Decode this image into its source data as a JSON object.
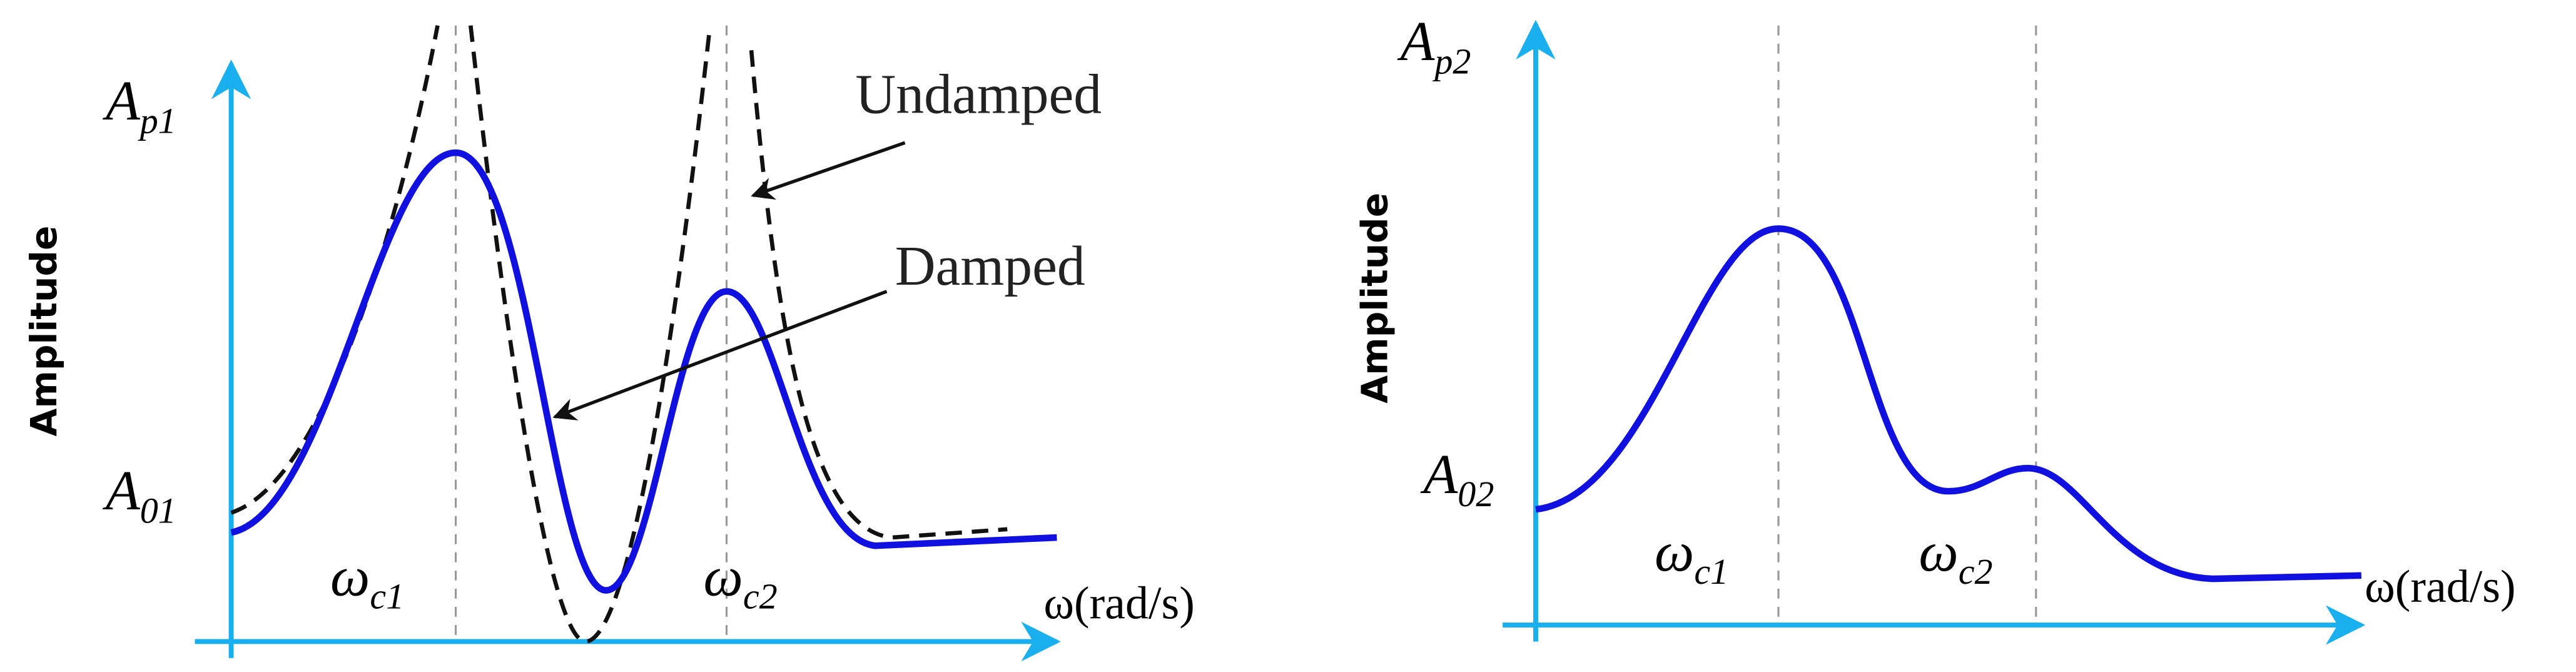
{
  "left_panel": {
    "y_label": "Amplitude",
    "peak_label": {
      "main": "A",
      "sub": "p1"
    },
    "base_label": {
      "main": "A",
      "sub": "01"
    },
    "freq_labels": [
      {
        "main": "ω",
        "sub": "c1"
      },
      {
        "main": "ω",
        "sub": "c2"
      }
    ],
    "x_label": "ω(rad/s)",
    "annotations": [
      "Undamped",
      "Damped"
    ]
  },
  "right_panel": {
    "y_label": "Amplitude",
    "peak_label": {
      "main": "A",
      "sub": "p2"
    },
    "base_label": {
      "main": "A",
      "sub": "02"
    },
    "freq_labels": [
      {
        "main": "ω",
        "sub": "c1"
      },
      {
        "main": "ω",
        "sub": "c2"
      }
    ],
    "x_label": "ω(rad/s)"
  }
}
